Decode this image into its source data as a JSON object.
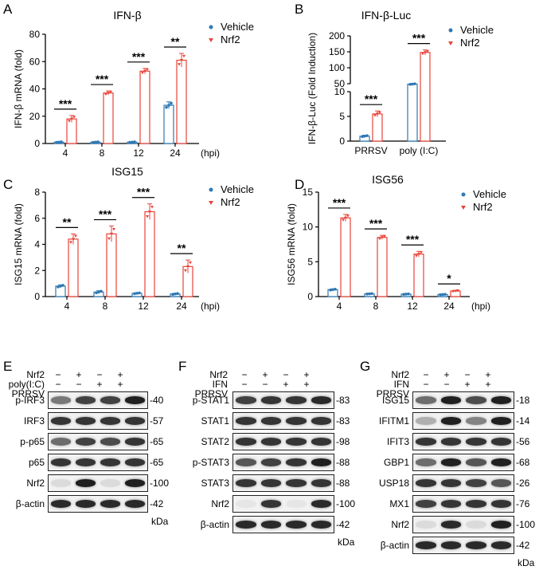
{
  "letters": [
    "A",
    "B",
    "C",
    "D",
    "E",
    "F",
    "G"
  ],
  "legend": {
    "vehicle": "Vehicle",
    "nrf2": "Nrf2"
  },
  "colors": {
    "vehicle": "#2f78b4",
    "nrf2": "#e8443a",
    "axis": "#000000"
  },
  "chart_data": [
    {
      "id": "A",
      "type": "bar",
      "title": "IFN-β",
      "ylabel": "IFN-β mRNA (fold)",
      "categories": [
        "4",
        "8",
        "12",
        "24"
      ],
      "xunit": "(hpi)",
      "yticks": [
        0,
        20,
        40,
        60,
        80
      ],
      "ylim": [
        0,
        80
      ],
      "series": [
        {
          "name": "Vehicle",
          "values": [
            1,
            1,
            1,
            28
          ],
          "err": [
            0.3,
            0.3,
            0.3,
            2.5
          ]
        },
        {
          "name": "Nrf2",
          "values": [
            18,
            37,
            53,
            61
          ],
          "err": [
            2.5,
            1.5,
            2,
            5
          ]
        }
      ],
      "sig": [
        "***",
        "***",
        "***",
        "**"
      ]
    },
    {
      "id": "B",
      "type": "bar",
      "title": "IFN-β-Luc",
      "ylabel": "IFN-β-Luc (Fold Induction)",
      "categories": [
        "PRRSV",
        "poly (I:C)"
      ],
      "broken_axis": true,
      "yticks_low": [
        0,
        5,
        10
      ],
      "yticks_high": [
        50,
        100,
        150,
        200
      ],
      "series": [
        {
          "name": "Vehicle",
          "values": [
            1,
            48
          ],
          "err": [
            0.2,
            3
          ]
        },
        {
          "name": "Nrf2",
          "values": [
            5.5,
            148
          ],
          "err": [
            0.6,
            8
          ]
        }
      ],
      "sig": [
        "***",
        "***"
      ]
    },
    {
      "id": "C",
      "type": "bar",
      "title": "ISG15",
      "ylabel": "ISG15 mRNA (fold)",
      "categories": [
        "4",
        "8",
        "12",
        "24"
      ],
      "xunit": "(hpi)",
      "yticks": [
        0,
        2,
        4,
        6,
        8
      ],
      "ylim": [
        0,
        8
      ],
      "series": [
        {
          "name": "Vehicle",
          "values": [
            0.8,
            0.35,
            0.25,
            0.2
          ],
          "err": [
            0.1,
            0.1,
            0.05,
            0.05
          ]
        },
        {
          "name": "Nrf2",
          "values": [
            4.4,
            4.8,
            6.5,
            2.3
          ],
          "err": [
            0.4,
            0.6,
            0.6,
            0.5
          ]
        }
      ],
      "sig": [
        "**",
        "***",
        "***",
        "**"
      ]
    },
    {
      "id": "D",
      "type": "bar",
      "title": "ISG56",
      "ylabel": "ISG56 mRNA (fold)",
      "categories": [
        "4",
        "8",
        "12",
        "24"
      ],
      "xunit": "(hpi)",
      "yticks": [
        0,
        5,
        10,
        15
      ],
      "ylim": [
        0,
        15
      ],
      "series": [
        {
          "name": "Vehicle",
          "values": [
            1,
            0.4,
            0.35,
            0.3
          ],
          "err": [
            0.1,
            0.05,
            0.05,
            0.05
          ]
        },
        {
          "name": "Nrf2",
          "values": [
            11.3,
            8.5,
            6.1,
            0.8
          ],
          "err": [
            0.5,
            0.3,
            0.4,
            0.1
          ]
        }
      ],
      "sig": [
        "***",
        "***",
        "***",
        "*"
      ]
    }
  ],
  "blots": [
    {
      "id": "E",
      "conditions": [
        {
          "label": "Nrf2",
          "signs": [
            "−",
            "+",
            "−",
            "+"
          ]
        },
        {
          "label": "poly(I:C)",
          "signs": [
            "−",
            "−",
            "+",
            "+"
          ]
        },
        {
          "label": "PRRSV",
          "signs": [
            "+",
            "+",
            "+",
            "+"
          ]
        }
      ],
      "rows": [
        {
          "label": "p-IRF3",
          "kda": "40",
          "intensity": [
            0.55,
            0.8,
            0.8,
            0.95
          ]
        },
        {
          "label": "IRF3",
          "kda": "57",
          "intensity": [
            0.85,
            0.85,
            0.85,
            0.85
          ]
        },
        {
          "label": "p-p65",
          "kda": "65",
          "intensity": [
            0.6,
            0.8,
            0.75,
            0.85
          ]
        },
        {
          "label": "p65",
          "kda": "65",
          "intensity": [
            0.85,
            0.85,
            0.85,
            0.85
          ]
        },
        {
          "label": "Nrf2",
          "kda": "100",
          "intensity": [
            0.1,
            0.95,
            0.1,
            0.95
          ]
        },
        {
          "label": "β-actin",
          "kda": "42",
          "intensity": [
            0.9,
            0.9,
            0.9,
            0.9
          ]
        }
      ],
      "unit": "kDa"
    },
    {
      "id": "F",
      "conditions": [
        {
          "label": "Nrf2",
          "signs": [
            "−",
            "+",
            "−",
            "+"
          ]
        },
        {
          "label": "IFN",
          "signs": [
            "−",
            "−",
            "+",
            "+"
          ]
        },
        {
          "label": "PRRSV",
          "signs": [
            "+",
            "+",
            "+",
            "+"
          ]
        }
      ],
      "rows": [
        {
          "label": "p-STAT1",
          "kda": "83",
          "intensity": [
            0.8,
            0.85,
            0.85,
            0.9
          ]
        },
        {
          "label": "STAT1",
          "kda": "83",
          "intensity": [
            0.85,
            0.85,
            0.85,
            0.85
          ]
        },
        {
          "label": "STAT2",
          "kda": "98",
          "intensity": [
            0.85,
            0.85,
            0.85,
            0.85
          ]
        },
        {
          "label": "p-STAT3",
          "kda": "88",
          "intensity": [
            0.7,
            0.8,
            0.85,
            0.95
          ]
        },
        {
          "label": "STAT3",
          "kda": "88",
          "intensity": [
            0.85,
            0.85,
            0.85,
            0.85
          ]
        },
        {
          "label": "Nrf2",
          "kda": "100",
          "intensity": [
            0.05,
            0.85,
            0.05,
            0.9
          ]
        },
        {
          "label": "β-actin",
          "kda": "42",
          "intensity": [
            0.9,
            0.9,
            0.9,
            0.9
          ]
        }
      ],
      "unit": "kDa"
    },
    {
      "id": "G",
      "conditions": [
        {
          "label": "Nrf2",
          "signs": [
            "−",
            "+",
            "−",
            "+"
          ]
        },
        {
          "label": "IFN",
          "signs": [
            "−",
            "−",
            "+",
            "+"
          ]
        },
        {
          "label": "PRRSV",
          "signs": [
            "+",
            "+",
            "+",
            "+"
          ]
        }
      ],
      "rows": [
        {
          "label": "ISG15",
          "kda": "18",
          "intensity": [
            0.6,
            0.95,
            0.75,
            0.95
          ]
        },
        {
          "label": "IFITM1",
          "kda": "14",
          "intensity": [
            0.3,
            0.95,
            0.5,
            0.95
          ]
        },
        {
          "label": "IFIT3",
          "kda": "56",
          "intensity": [
            0.85,
            0.85,
            0.85,
            0.85
          ]
        },
        {
          "label": "GBP1",
          "kda": "68",
          "intensity": [
            0.6,
            0.95,
            0.7,
            0.95
          ]
        },
        {
          "label": "USP18",
          "kda": "26",
          "intensity": [
            0.85,
            0.85,
            0.8,
            0.7
          ]
        },
        {
          "label": "MX1",
          "kda": "76",
          "intensity": [
            0.8,
            0.85,
            0.85,
            0.85
          ]
        },
        {
          "label": "Nrf2",
          "kda": "100",
          "intensity": [
            0.1,
            0.9,
            0.1,
            0.95
          ]
        },
        {
          "label": "β-actin",
          "kda": "42",
          "intensity": [
            0.9,
            0.9,
            0.9,
            0.9
          ]
        }
      ],
      "unit": "kDa"
    }
  ]
}
